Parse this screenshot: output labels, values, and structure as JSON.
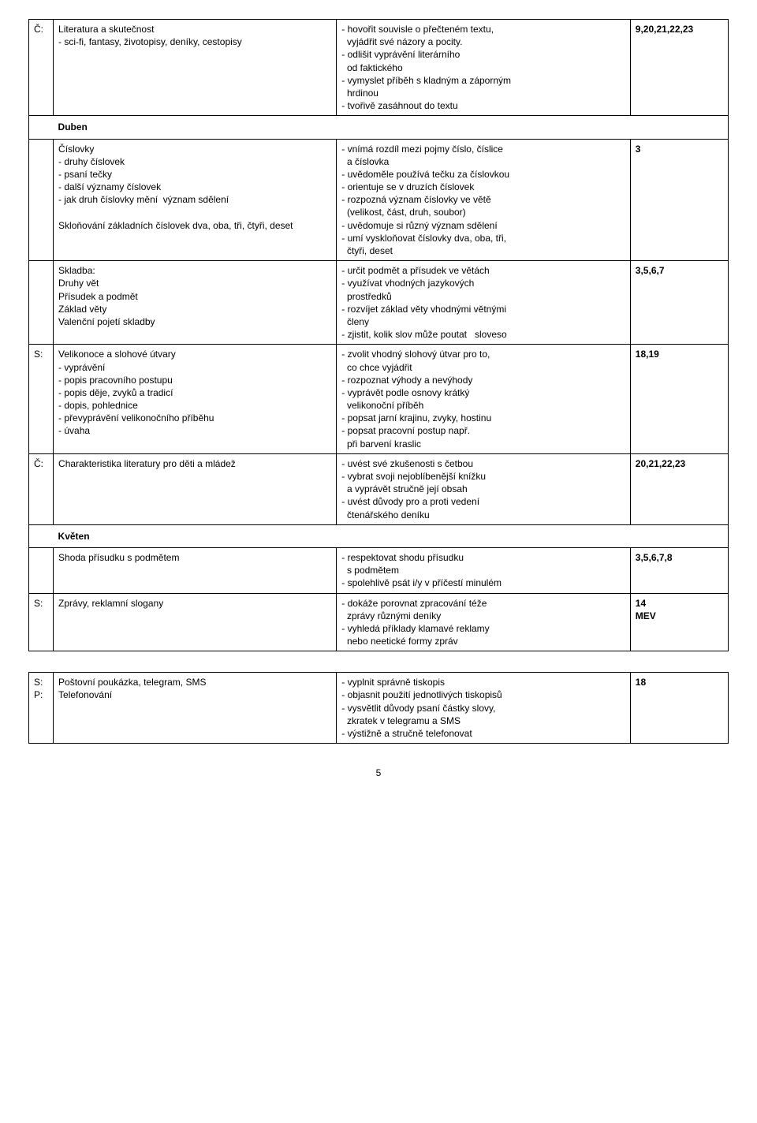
{
  "rows": [
    {
      "label": "Č:",
      "colA": "Literatura a skutečnost\n- sci-fi, fantasy, životopisy, deníky, cestopisy",
      "colB": "- hovořit souvisle o přečteném textu,\n  vyjádřit své názory a pocity.\n- odlišit vyprávění literárního\n  od faktického\n- vymyslet příběh s kladným a záporným\n  hrdinou\n- tvořivě zasáhnout do textu",
      "colC": "9,20,21,22,23"
    }
  ],
  "section1": "Duben",
  "rows2": [
    {
      "label": "",
      "colA": "Číslovky\n- druhy číslovek\n- psaní tečky\n- další významy číslovek\n- jak druh číslovky mění  význam sdělení\n\nSkloňování základních číslovek dva, oba, tři, čtyři, deset",
      "colB": "- vnímá rozdíl mezi pojmy číslo, číslice\n  a číslovka\n- uvědoměle používá tečku za číslovkou\n- orientuje se v druzích číslovek\n- rozpozná význam číslovky ve větě\n  (velikost, část, druh, soubor)\n- uvědomuje si různý význam sdělení\n- umí vyskloňovat číslovky dva, oba, tři,\n  čtyři, deset",
      "colC": "3"
    },
    {
      "label": "",
      "colA": "Skladba:\nDruhy vět\nPřísudek a podmět\nZáklad věty\nValenční pojetí skladby",
      "colB": "- určit podmět a přísudek ve větách\n- využívat vhodných jazykových\n  prostředků\n- rozvíjet základ věty vhodnými větnými\n  členy\n- zjistit, kolik slov může poutat   sloveso",
      "colC": "3,5,6,7"
    },
    {
      "label": "S:",
      "colA": "Velikonoce a slohové útvary\n- vyprávění\n- popis pracovního postupu\n- popis děje, zvyků a tradicí\n- dopis, pohlednice\n- převyprávění velikonočního příběhu\n- úvaha",
      "colB": "- zvolit vhodný slohový útvar pro to,\n  co chce vyjádřit\n- rozpoznat výhody a nevýhody\n- vyprávět podle osnovy krátký\n  velikonoční příběh\n- popsat jarní krajinu, zvyky, hostinu\n- popsat pracovní postup např.\n  při barvení kraslic",
      "colC": "18,19"
    },
    {
      "label": "Č:",
      "colA": "Charakteristika literatury pro děti a mládež",
      "colB": "- uvést své zkušenosti s četbou\n- vybrat svoji nejoblíbenější knížku\n  a vyprávět stručně její obsah\n- uvést důvody pro a proti vedení\n  čtenářského deníku",
      "colC": "20,21,22,23"
    }
  ],
  "section2": "Květen",
  "rows3": [
    {
      "label": "",
      "colA": "Shoda přísudku s podmětem",
      "colB": "- respektovat shodu přísudku\n  s podmětem\n- spolehlivě psát i/y v příčestí minulém",
      "colC": "3,5,6,7,8"
    },
    {
      "label": "S:",
      "colA": "Zprávy, reklamní slogany",
      "colB": "- dokáže porovnat zpracování téže\n  zprávy různými deníky\n- vyhledá příklady klamavé reklamy\n  nebo neetické formy zpráv",
      "colC": "14\nMEV"
    }
  ],
  "rows4": [
    {
      "label": "S:\nP:",
      "colA": "Poštovní poukázka, telegram, SMS\nTelefonování",
      "colB": "- vyplnit správně tiskopis\n- objasnit použití jednotlivých tiskopisů\n- vysvětlit důvody psaní částky slovy,\n  zkratek v telegramu a SMS\n- výstižně a stručně telefonovat",
      "colC": "18"
    }
  ],
  "pageNumber": "5"
}
